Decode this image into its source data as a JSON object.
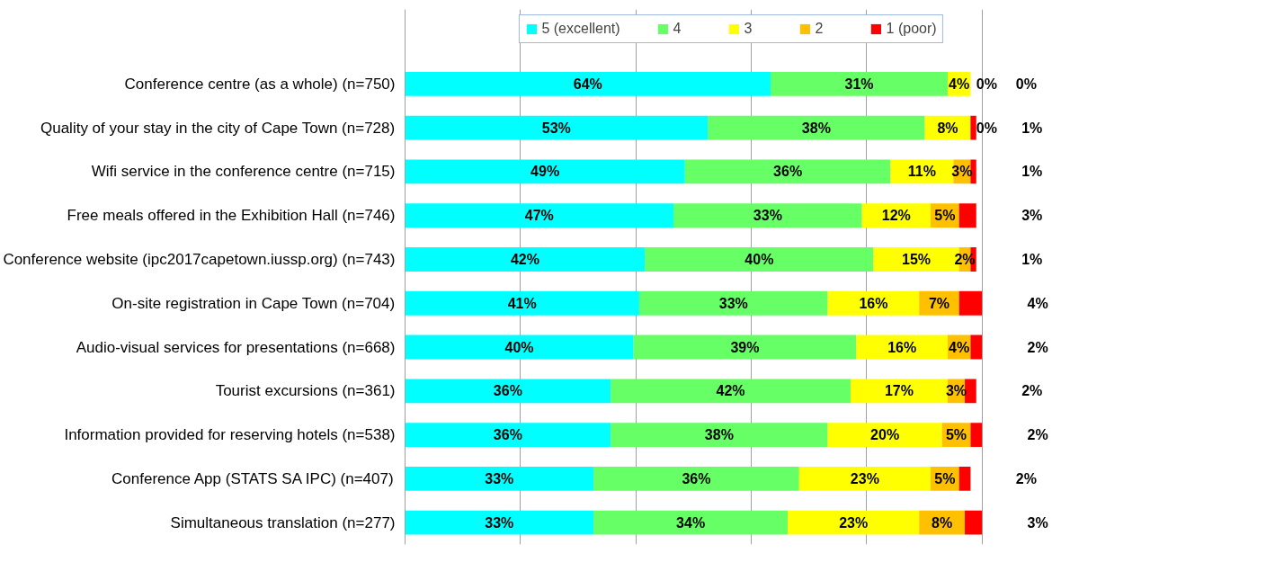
{
  "chart_data": {
    "type": "bar",
    "orientation": "horizontal",
    "stacked": true,
    "legend": "top",
    "grid": "x",
    "tick_labels": "y",
    "categories": [
      "Conference centre (as a whole) (n=750)",
      "Quality of your stay in the city of Cape Town (n=728)",
      "Wifi service in the conference centre (n=715)",
      "Free meals offered in the Exhibition Hall (n=746)",
      "Conference website (ipc2017capetown.iussp.org) (n=743)",
      "On-site registration in Cape Town (n=704)",
      "Audio-visual services for presentations (n=668)",
      "Tourist excursions (n=361)",
      "Information provided for reserving hotels (n=538)",
      "Conference App (STATS SA IPC) (n=407)",
      "Simultaneous translation (n=277)"
    ],
    "series": [
      {
        "name": "5 (excellent)",
        "color": "#00ffff",
        "values": [
          64,
          53,
          49,
          47,
          42,
          41,
          40,
          36,
          36,
          33,
          33
        ],
        "value_labels": [
          "64%",
          "53%",
          "49%",
          "47%",
          "42%",
          "41%",
          "40%",
          "36%",
          "36%",
          "33%",
          "33%"
        ]
      },
      {
        "name": "4",
        "color": "#66ff66",
        "values": [
          31,
          38,
          36,
          33,
          40,
          33,
          39,
          42,
          38,
          36,
          34
        ],
        "value_labels": [
          "31%",
          "38%",
          "36%",
          "33%",
          "40%",
          "33%",
          "39%",
          "42%",
          "38%",
          "36%",
          "34%"
        ]
      },
      {
        "name": "3",
        "color": "#ffff00",
        "values": [
          4,
          8,
          11,
          12,
          15,
          16,
          16,
          17,
          20,
          23,
          23
        ],
        "value_labels": [
          "4%",
          "8%",
          "11%",
          "12%",
          "15%",
          "16%",
          "16%",
          "17%",
          "20%",
          "23%",
          "23%"
        ]
      },
      {
        "name": "2",
        "color": "#ffc000",
        "values": [
          0,
          0,
          3,
          5,
          2,
          7,
          4,
          3,
          5,
          5,
          8
        ],
        "value_labels": [
          "0%",
          "0%",
          "3%",
          "5%",
          "2%",
          "7%",
          "4%",
          "3%",
          "5%",
          "5%",
          "8%"
        ]
      },
      {
        "name": "1 (poor)",
        "color": "#ff0000",
        "values": [
          0,
          1,
          1,
          3,
          1,
          4,
          2,
          2,
          2,
          2,
          3
        ],
        "value_labels": [
          "0%",
          "1%",
          "1%",
          "3%",
          "1%",
          "4%",
          "2%",
          "2%",
          "2%",
          "2%",
          "3%"
        ]
      }
    ]
  }
}
